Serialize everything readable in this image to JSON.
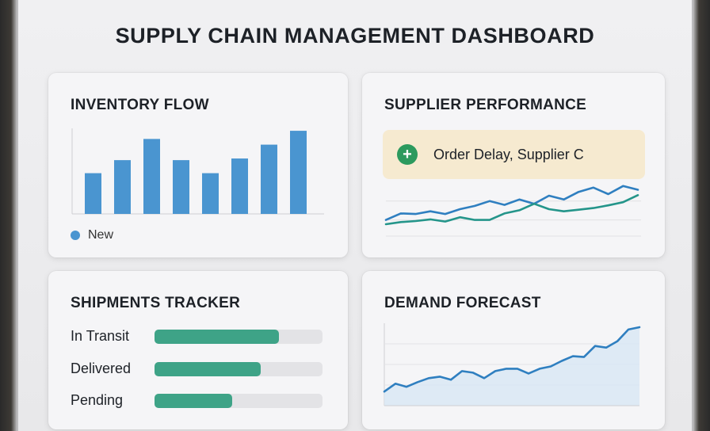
{
  "title": "SUPPLY CHAIN MANAGEMENT DASHBOARD",
  "inventory": {
    "title": "INVENTORY FLOW",
    "legend_label": "New",
    "bar_color": "#4a95d0",
    "values": [
      50,
      66,
      92,
      66,
      50,
      68,
      85,
      102
    ],
    "ylim": [
      0,
      105
    ]
  },
  "supplier": {
    "title": "SUPPLIER PERFORMANCE",
    "alert_icon": "plus-icon",
    "alert_text": "Order Delay, Supplier C",
    "series": [
      {
        "color": "#2f7fc0",
        "values": [
          30,
          42,
          41,
          46,
          41,
          50,
          56,
          65,
          58,
          68,
          60,
          75,
          68,
          82,
          90,
          78,
          93,
          86
        ]
      },
      {
        "color": "#24958a",
        "values": [
          22,
          26,
          28,
          31,
          27,
          35,
          30,
          30,
          42,
          48,
          60,
          50,
          46,
          49,
          52,
          57,
          63,
          76
        ]
      }
    ],
    "ylim": [
      0,
      100
    ]
  },
  "shipments": {
    "title": "SHIPMENTS TRACKER",
    "rows": [
      {
        "label": "In Transit",
        "progress": 0.74
      },
      {
        "label": "Delivered",
        "progress": 0.63
      },
      {
        "label": "Pending",
        "progress": 0.46
      }
    ]
  },
  "demand": {
    "title": "DEMAND FORECAST",
    "line_color": "#2f7fc0",
    "values": [
      18,
      28,
      24,
      30,
      35,
      37,
      33,
      44,
      42,
      35,
      44,
      47,
      47,
      41,
      47,
      50,
      57,
      63,
      62,
      76,
      74,
      82,
      97,
      100
    ],
    "ylim": [
      0,
      105
    ]
  }
}
